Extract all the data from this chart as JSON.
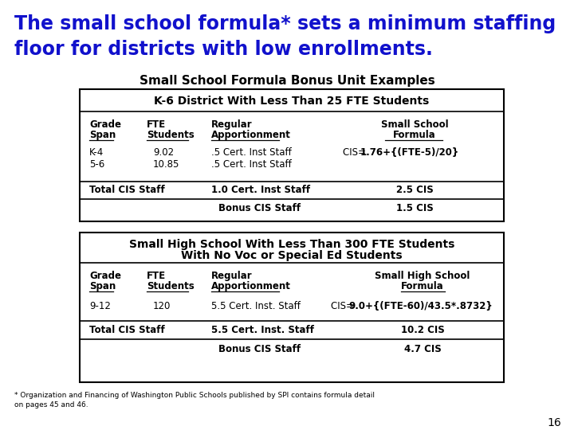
{
  "title_line1": "The small school formula* sets a minimum staffing",
  "title_line2": "floor for districts with low enrollments.",
  "title_color": "#1111CC",
  "subtitle": "Small School Formula Bonus Unit Examples",
  "bg_color": "#FFFFFF",
  "page_num": "16",
  "footnote": "* Organization and Financing of Washington Public Schools published by SPI contains formula detail\non pages 45 and 46.",
  "table1_header": "K-6 District With Less Than 25 FTE Students",
  "table2_header1": "Small High School With Less Than 300 FTE Students",
  "table2_header2": "With No Voc or Special Ed Students",
  "col_hdr1a": "Grade",
  "col_hdr1b": "Span",
  "col_hdr2a": "FTE",
  "col_hdr2b": "Students",
  "col_hdr3a": "Regular",
  "col_hdr3b": "Apportionment",
  "col_hdr4a_t1": "Small School",
  "col_hdr4b_t1": "Formula",
  "col_hdr4a_t2": "Small High School",
  "col_hdr4b_t2": "Formula",
  "t1_r1_span": "K-4",
  "t1_r1_fte": "9.02",
  "t1_r1_reg": ".5 Cert. Inst Staff",
  "t1_r1_ssf_pre": "CIS= ",
  "t1_r1_ssf_bold": "1.76+{(FTE-5)/20}",
  "t1_r2_span": "5-6",
  "t1_r2_fte": "10.85",
  "t1_r2_reg": ".5 Cert. Inst Staff",
  "t1_total_reg": "1.0 Cert. Inst Staff",
  "t1_total_ssf": "2.5 CIS",
  "t1_bonus_reg": "Bonus CIS Staff",
  "t1_bonus_ssf": "1.5 CIS",
  "t2_r1_span": "9-12",
  "t2_r1_fte": "120",
  "t2_r1_reg": "5.5 Cert. Inst. Staff",
  "t2_r1_ssf_pre": "CIS= ",
  "t2_r1_ssf_bold": "9.0+{(FTE-60)/43.5*.8732}",
  "t2_total_reg": "5.5 Cert. Inst. Staff",
  "t2_total_ssf": "10.2 CIS",
  "t2_bonus_reg": "Bonus CIS Staff",
  "t2_bonus_ssf": "4.7 CIS"
}
